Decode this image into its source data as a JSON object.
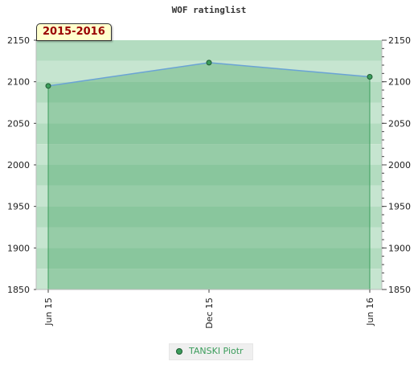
{
  "chart_data": {
    "type": "area",
    "title": "WOF ratinglist",
    "annotation": "2015-2016",
    "x": [
      "Jun 15",
      "Dec 15",
      "Jun 16"
    ],
    "series": [
      {
        "name": "TANSKI Piotr",
        "values": [
          2095,
          2123,
          2106
        ]
      }
    ],
    "ylim": [
      1850,
      2150
    ],
    "yticks": [
      1850,
      1900,
      1950,
      2000,
      2050,
      2100,
      2150
    ],
    "yaxis_left": true,
    "yaxis_right": true,
    "legend_position": "bottom-center",
    "grid": "alternating horizontal bands",
    "colors": {
      "line": "#6aa3d5",
      "fill": "#3c9d5c",
      "marker": "#3c9d5c",
      "legend_text": "#3c9d5c",
      "band_a": "#b3dcc0",
      "band_b": "#c6e5d0",
      "badge_text": "#990000",
      "badge_bg": "#ffffcc"
    }
  }
}
